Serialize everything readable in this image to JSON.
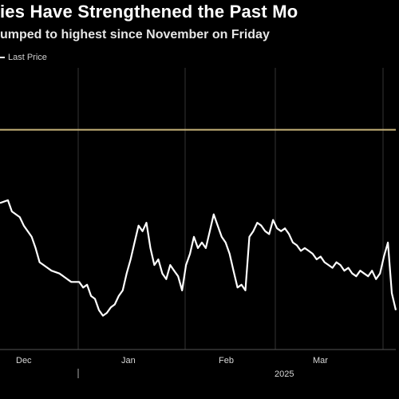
{
  "title": "ies Have Strengthened the Past Mo",
  "subtitle": "umped to highest since November on Friday",
  "legend_label": "Last Price",
  "chart_data": {
    "type": "line",
    "title": "ies Have Strengthened the Past Mo",
    "subtitle": "umped to highest since November on Friday",
    "xlabel": "",
    "ylabel": "",
    "x_tick_labels": [
      "Dec",
      "Jan",
      "Feb",
      "Mar"
    ],
    "year_label": "2025",
    "grid": "vertical",
    "legend": "top-left",
    "colors": {
      "line": "#ffffff",
      "reference": "#c8b47a",
      "background": "#000000",
      "grid": "#333333"
    },
    "ylim": [
      0,
      100
    ],
    "xlim": [
      0,
      100
    ],
    "reference_line": 78,
    "series": [
      {
        "name": "Last Price",
        "x": [
          0,
          2,
          3,
          5,
          6,
          8,
          9,
          10,
          11,
          12,
          13,
          15,
          16,
          17,
          18,
          20,
          21,
          22,
          23,
          24,
          25,
          26,
          27,
          28,
          29,
          30,
          31,
          32,
          33,
          34,
          35,
          36,
          37,
          38,
          39,
          40,
          41,
          42,
          43,
          44,
          45,
          46,
          47,
          48,
          49,
          50,
          51,
          52,
          53,
          54,
          55,
          56,
          57,
          58,
          59,
          60,
          61,
          62,
          63,
          64,
          65,
          66,
          67,
          68,
          69,
          70,
          71,
          72,
          73,
          74,
          75,
          76,
          77,
          78,
          79,
          80,
          81,
          82,
          83,
          84,
          85,
          86,
          87,
          88,
          89,
          90,
          91,
          92,
          93,
          94,
          95,
          96,
          97,
          98,
          99,
          100
        ],
        "values": [
          52,
          53,
          49,
          47,
          44,
          40,
          36,
          31,
          30,
          29,
          28,
          27,
          26,
          25,
          24,
          24,
          22,
          23,
          19,
          18,
          14,
          12,
          13,
          15,
          16,
          19,
          21,
          27,
          32,
          38,
          44,
          42,
          45,
          36,
          30,
          32,
          27,
          25,
          30,
          28,
          26,
          21,
          30,
          34,
          40,
          36,
          38,
          36,
          42,
          48,
          44,
          40,
          38,
          34,
          28,
          22,
          23,
          21,
          40,
          42,
          45,
          44,
          42,
          41,
          46,
          43,
          42,
          43,
          41,
          38,
          37,
          35,
          36,
          35,
          34,
          32,
          33,
          31,
          30,
          29,
          31,
          30,
          28,
          29,
          27,
          26,
          28,
          27,
          26,
          28,
          25,
          27,
          33,
          38,
          20,
          14
        ]
      }
    ]
  }
}
